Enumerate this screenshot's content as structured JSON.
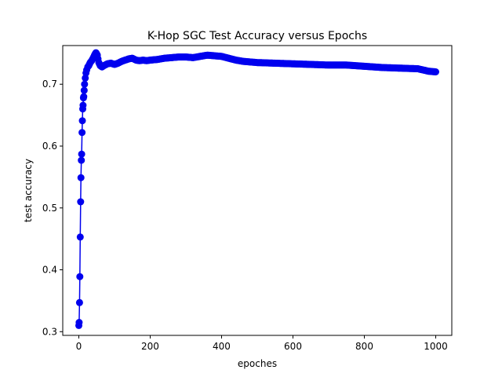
{
  "chart_data": {
    "type": "line",
    "title": "K-Hop SGC Test Accuracy versus Epochs",
    "xlabel": "epoches",
    "ylabel": "test accuracy",
    "xlim": [
      -45,
      1045
    ],
    "ylim": [
      0.294,
      0.7625
    ],
    "xticks": [
      0,
      200,
      400,
      600,
      800,
      1000
    ],
    "yticks": [
      0.3,
      0.4,
      0.5,
      0.6,
      0.7
    ],
    "ytick_labels": [
      "0.3",
      "0.4",
      "0.5",
      "0.6",
      "0.7"
    ],
    "grid": false,
    "color": "#0000ee",
    "marker": "circle",
    "series": [
      {
        "x": [
          0,
          1,
          2,
          3,
          4,
          5,
          6,
          7,
          8,
          9,
          10,
          11,
          12,
          13,
          14,
          15,
          16,
          18,
          20,
          22,
          25,
          28,
          32,
          36,
          40,
          44,
          48,
          52,
          56,
          60,
          65,
          70,
          80,
          90,
          100,
          110,
          120,
          130,
          140,
          150,
          160,
          170,
          180,
          190,
          200,
          220,
          240,
          260,
          280,
          300,
          320,
          340,
          360,
          380,
          400,
          420,
          440,
          460,
          480,
          500,
          550,
          600,
          650,
          700,
          750,
          800,
          850,
          900,
          950,
          980,
          1000
        ],
        "y": [
          0.31,
          0.315,
          0.347,
          0.389,
          0.453,
          0.51,
          0.549,
          0.577,
          0.587,
          0.622,
          0.641,
          0.66,
          0.666,
          0.678,
          0.68,
          0.69,
          0.7,
          0.71,
          0.718,
          0.723,
          0.728,
          0.73,
          0.735,
          0.738,
          0.742,
          0.747,
          0.751,
          0.747,
          0.735,
          0.73,
          0.728,
          0.73,
          0.733,
          0.734,
          0.732,
          0.734,
          0.737,
          0.739,
          0.741,
          0.742,
          0.739,
          0.738,
          0.739,
          0.738,
          0.739,
          0.74,
          0.742,
          0.743,
          0.744,
          0.744,
          0.743,
          0.745,
          0.747,
          0.746,
          0.745,
          0.742,
          0.739,
          0.737,
          0.736,
          0.735,
          0.734,
          0.733,
          0.732,
          0.731,
          0.731,
          0.729,
          0.727,
          0.726,
          0.725,
          0.721,
          0.72
        ]
      }
    ]
  }
}
